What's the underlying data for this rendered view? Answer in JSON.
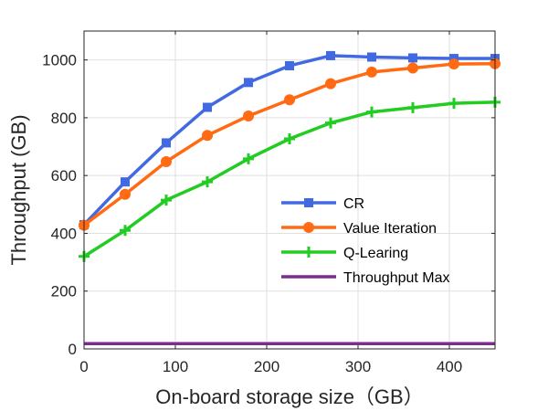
{
  "chart_data": {
    "type": "line",
    "title": "",
    "xlabel": "On-board storage size（GB）",
    "ylabel": "Throughput (GB)",
    "xlim": [
      0,
      450
    ],
    "ylim": [
      0,
      1100
    ],
    "xticks": [
      0,
      100,
      200,
      300,
      400
    ],
    "yticks": [
      0,
      200,
      400,
      600,
      800,
      1000
    ],
    "grid": true,
    "legend_position": "right-middle",
    "x": [
      0,
      45,
      90,
      135,
      180,
      225,
      270,
      315,
      360,
      405,
      450
    ],
    "series": [
      {
        "name": "CR",
        "color": "#4169E1",
        "marker": "square",
        "values": [
          430,
          578,
          713,
          836,
          922,
          980,
          1015,
          1010,
          1007,
          1005,
          1005
        ]
      },
      {
        "name": "Value Iteration",
        "color": "#FF6A13",
        "marker": "circle",
        "values": [
          428,
          535,
          648,
          739,
          806,
          862,
          918,
          958,
          972,
          986,
          987
        ]
      },
      {
        "name": "Q-Learing",
        "color": "#22CC22",
        "marker": "plus",
        "values": [
          320,
          410,
          515,
          578,
          658,
          727,
          782,
          820,
          835,
          850,
          854
        ]
      },
      {
        "name": "Throughput Max",
        "color": "#7B2D8E",
        "marker": "none",
        "values": [
          18,
          18,
          18,
          18,
          18,
          18,
          18,
          18,
          18,
          18,
          18
        ]
      }
    ]
  }
}
